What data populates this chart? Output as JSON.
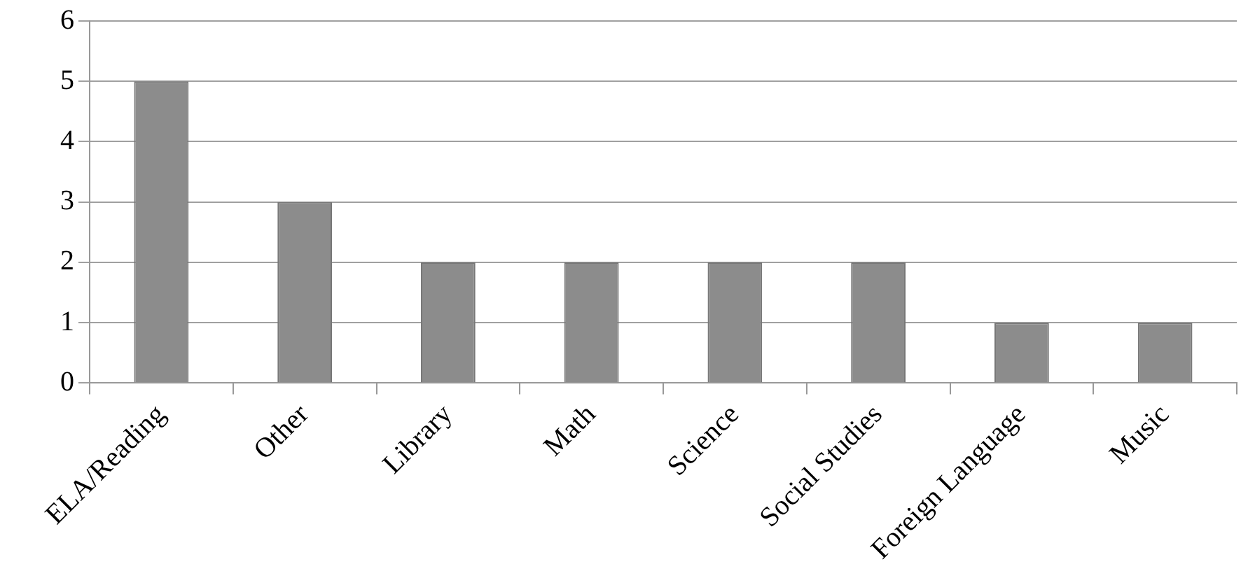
{
  "chart_data": {
    "type": "bar",
    "categories": [
      "ELA/Reading",
      "Other",
      "Library",
      "Math",
      "Science",
      "Social Studies",
      "Foreign Language",
      "Music"
    ],
    "values": [
      5,
      3,
      2,
      2,
      2,
      2,
      1,
      1
    ],
    "color": "#8c8c8c",
    "ylim": [
      0,
      6
    ],
    "yticks": [
      0,
      1,
      2,
      3,
      4,
      5,
      6
    ],
    "grid": "y",
    "legend": false
  }
}
